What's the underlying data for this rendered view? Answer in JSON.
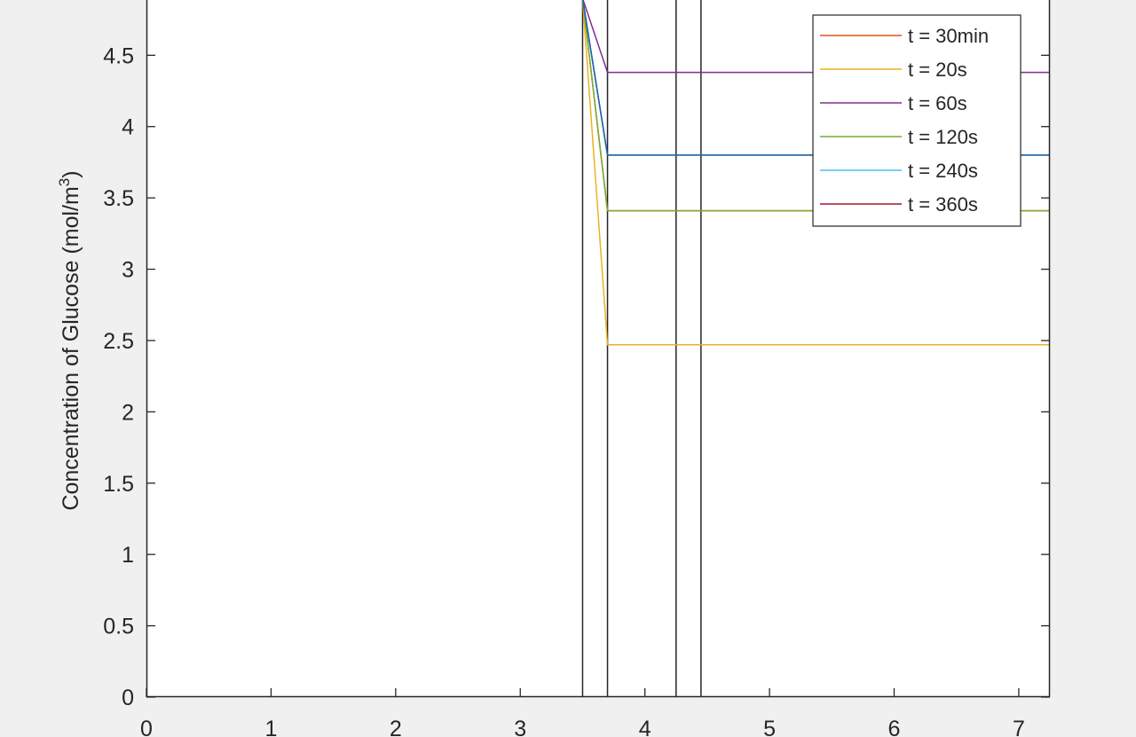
{
  "chart_data": {
    "type": "line",
    "ylabel": "Concentration of Glucose (mol/m",
    "ylabel_superscript": "3",
    "ylabel_suffix": ")",
    "xlim": [
      0,
      7.25
    ],
    "ylim": [
      0,
      4.9
    ],
    "x_ticks": [
      "0",
      "1",
      "2",
      "3",
      "4",
      "5",
      "6",
      "7"
    ],
    "y_ticks": [
      "0",
      "0.5",
      "1",
      "1.5",
      "2",
      "2.5",
      "3",
      "3.5",
      "4",
      "4.5"
    ],
    "grid": false,
    "legend_position": "top-right",
    "vertical_lines": [
      3.5,
      3.7,
      4.25,
      4.45
    ],
    "series": [
      {
        "name": "t = 30min",
        "color": "#d95319",
        "x": [
          3.5,
          3.7,
          7.25
        ],
        "y": [
          4.9,
          3.41,
          3.41
        ]
      },
      {
        "name": "t = 20s",
        "color": "#edb120",
        "x": [
          3.5,
          3.7,
          7.25
        ],
        "y": [
          4.9,
          2.47,
          2.47
        ]
      },
      {
        "name": "t = 60s",
        "color": "#7e2f8e",
        "x": [
          3.5,
          3.7,
          7.25
        ],
        "y": [
          4.9,
          4.38,
          4.38
        ]
      },
      {
        "name": "t = 120s",
        "color": "#77ac30",
        "x": [
          3.5,
          3.7,
          7.25
        ],
        "y": [
          4.9,
          3.41,
          3.41
        ]
      },
      {
        "name": "t = 240s",
        "color": "#4dbeee",
        "x": [
          3.5,
          3.7,
          7.25
        ],
        "y": [
          4.9,
          3.8,
          3.8
        ]
      },
      {
        "name": "t = 360s",
        "color": "#a2142f",
        "x": [
          3.5,
          3.7,
          7.25
        ],
        "y": [
          4.9,
          3.8,
          3.8
        ]
      }
    ],
    "overlay_color": "#0072bd"
  }
}
